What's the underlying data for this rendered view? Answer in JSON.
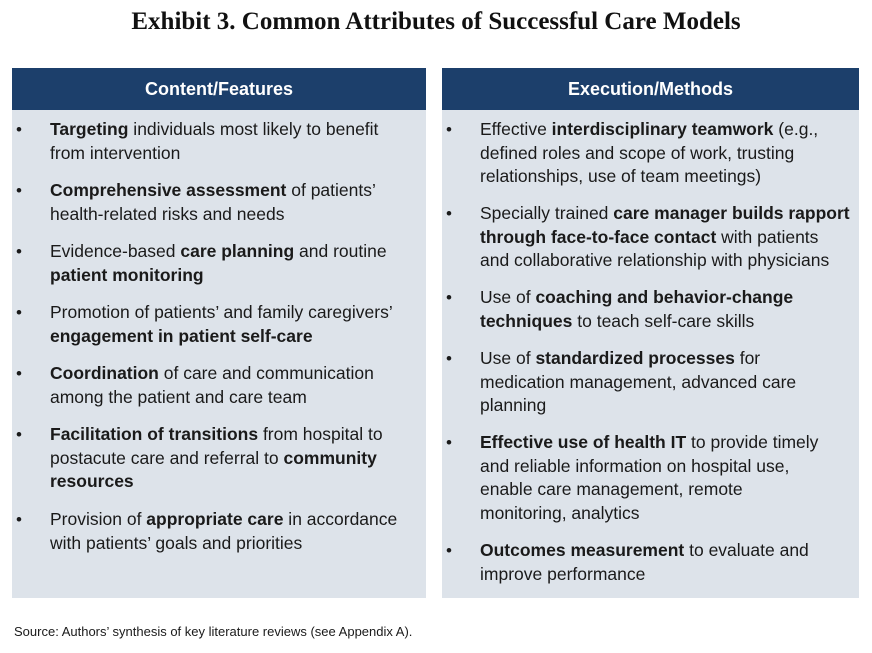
{
  "title": "Exhibit 3. Common Attributes of Successful Care Models",
  "left_column": {
    "header": "Content/Features",
    "items": [
      {
        "lines": [
          [
            "b",
            "Targeting"
          ],
          [
            "t",
            " individuals most likely to benefit"
          ]
        ],
        "line2": [
          [
            "t",
            "from intervention"
          ]
        ]
      },
      {
        "lines": [
          [
            "b",
            "Comprehensive assessment"
          ],
          [
            "t",
            " of patients’"
          ]
        ],
        "line2": [
          [
            "t",
            "health-related risks and needs"
          ]
        ]
      },
      {
        "lines": [
          [
            "t",
            "Evidence-based "
          ],
          [
            "b",
            "care planning"
          ],
          [
            "t",
            " and routine"
          ]
        ],
        "line2": [
          [
            "b",
            "patient monitoring"
          ]
        ]
      },
      {
        "lines": [
          [
            "t",
            "Promotion of patients’ and family caregivers’"
          ]
        ],
        "line2": [
          [
            "b",
            "engagement in patient self-care"
          ]
        ]
      },
      {
        "lines": [
          [
            "b",
            "Coordination"
          ],
          [
            "t",
            " of care and communication"
          ]
        ],
        "line2": [
          [
            "t",
            "among the patient and care team"
          ]
        ]
      },
      {
        "lines": [
          [
            "b",
            "Facilitation of transitions"
          ],
          [
            "t",
            " from hospital to"
          ]
        ],
        "line2": [
          [
            "t",
            "postacute care and referral to "
          ],
          [
            "b",
            "community"
          ]
        ],
        "line3": [
          [
            "b",
            "resources"
          ]
        ]
      },
      {
        "lines": [
          [
            "t",
            "Provision of "
          ],
          [
            "b",
            "appropriate care"
          ],
          [
            "t",
            " in accordance"
          ]
        ],
        "line2": [
          [
            "t",
            "with patients’ goals and priorities"
          ]
        ]
      }
    ]
  },
  "right_column": {
    "header": "Execution/Methods",
    "items": [
      {
        "lines": [
          [
            "t",
            "Effective "
          ],
          [
            "b",
            "interdisciplinary teamwork"
          ],
          [
            "t",
            " (e.g.,"
          ]
        ],
        "line2": [
          [
            "t",
            "defined roles and scope of work, trusting"
          ]
        ],
        "line3": [
          [
            "t",
            "relationships, use of team meetings)"
          ]
        ]
      },
      {
        "lines": [
          [
            "t",
            "Specially trained "
          ],
          [
            "b",
            "care manager builds rapport"
          ]
        ],
        "line2": [
          [
            "b",
            "through face-to-face contact"
          ],
          [
            "t",
            " with patients"
          ]
        ],
        "line3": [
          [
            "t",
            "and collaborative relationship with physicians"
          ]
        ]
      },
      {
        "lines": [
          [
            "t",
            "Use of "
          ],
          [
            "b",
            "coaching and behavior-change"
          ]
        ],
        "line2": [
          [
            "b",
            "techniques"
          ],
          [
            "t",
            " to teach self-care skills"
          ]
        ]
      },
      {
        "lines": [
          [
            "t",
            "Use of "
          ],
          [
            "b",
            "standardized processes"
          ],
          [
            "t",
            " for"
          ]
        ],
        "line2": [
          [
            "t",
            "medication management, advanced care"
          ]
        ],
        "line3": [
          [
            "t",
            "planning"
          ]
        ]
      },
      {
        "lines": [
          [
            "b",
            "Effective use of health IT"
          ],
          [
            "t",
            " to provide timely"
          ]
        ],
        "line2": [
          [
            "t",
            "and reliable information on hospital use,"
          ]
        ],
        "line3": [
          [
            "t",
            "enable care management, remote"
          ]
        ],
        "line4": [
          [
            "t",
            "monitoring, analytics"
          ]
        ]
      },
      {
        "lines": [
          [
            "b",
            "Outcomes measurement"
          ],
          [
            "t",
            " to evaluate and"
          ]
        ],
        "line2": [
          [
            "t",
            "improve performance"
          ]
        ]
      }
    ]
  },
  "bullet_char": "•",
  "source": "Source: Authors’ synthesis of key literature reviews (see Appendix A).",
  "colors": {
    "header_bg": "#1c3f6b",
    "column_bg": "#dde3ea",
    "header_text": "#ffffff"
  }
}
